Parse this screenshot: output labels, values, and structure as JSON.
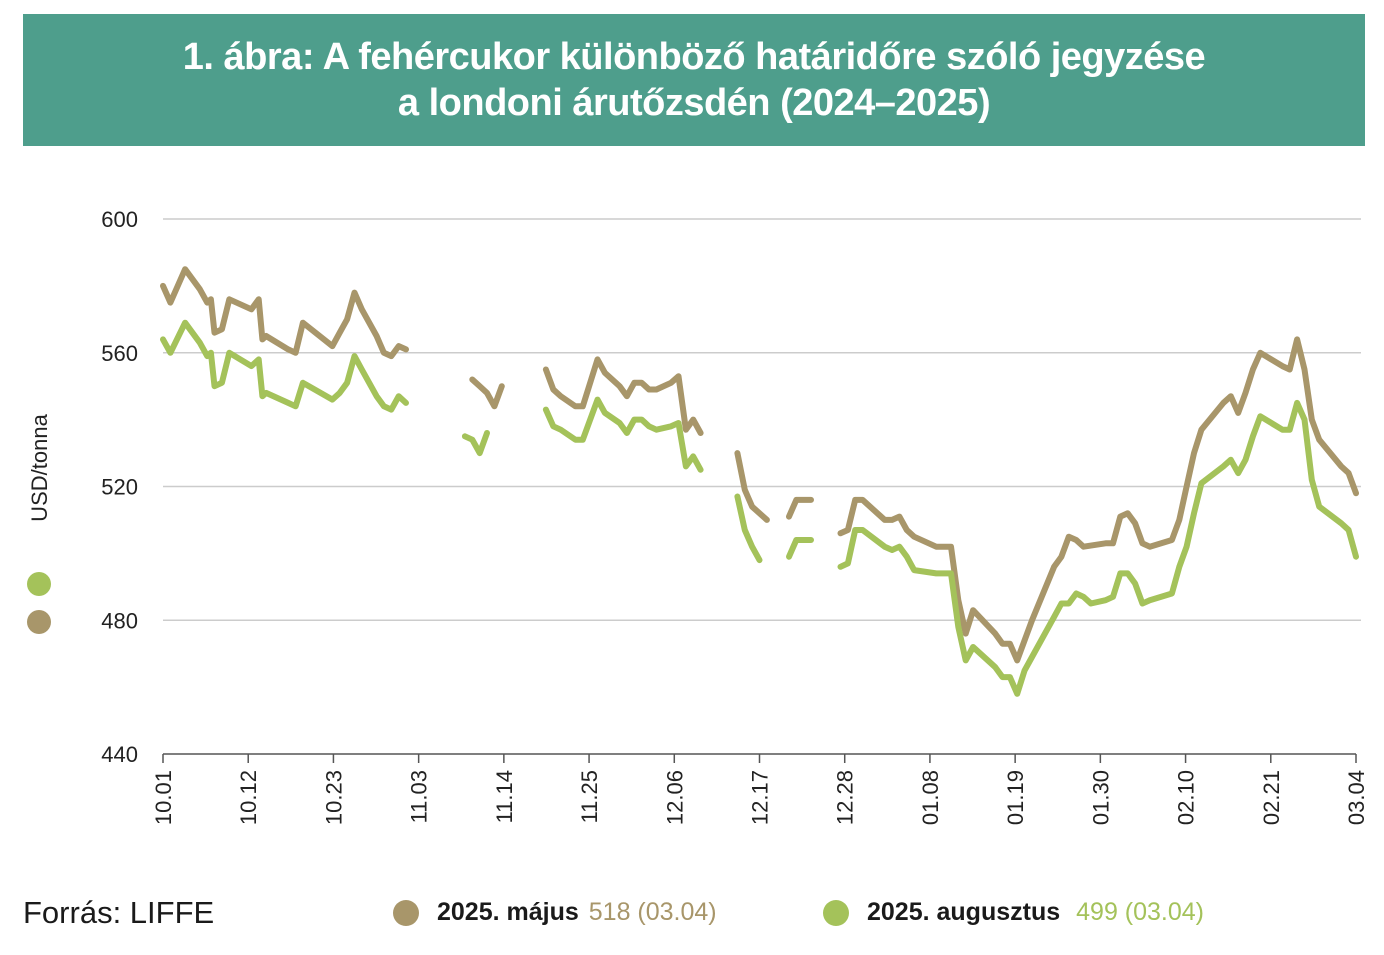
{
  "title": {
    "line1": "1. ábra: A fehércukor különböző határidőre szóló jegyzése",
    "line2": "a londoni árutőzsdén (2024–2025)"
  },
  "source": "Forrás: LIFFE",
  "colors": {
    "title_bg": "#4e9e8c",
    "may": "#a8966a",
    "aug": "#a4c25a",
    "grid": "#cccccc"
  },
  "legend": [
    {
      "name": "2025. május",
      "value": "518 (03.04)",
      "color": "#a8966a"
    },
    {
      "name": "2025. augusztus",
      "value": "499 (03.04)",
      "color": "#a4c25a"
    }
  ],
  "chart_data": {
    "type": "line",
    "ylabel": "USD/tonna",
    "ylim": [
      440,
      600
    ],
    "yticks": [
      "440",
      "480",
      "520",
      "560",
      "600"
    ],
    "xticks": [
      "10.01",
      "10.12",
      "10.23",
      "11.03",
      "11.14",
      "11.25",
      "12.06",
      "12.17",
      "12.28",
      "01.08",
      "01.19",
      "01.30",
      "02.10",
      "02.21",
      "03.04"
    ],
    "grid": "horizontal",
    "legend_position": "bottom",
    "series": [
      {
        "name": "2025. május",
        "segments": [
          [
            [
              0,
              580
            ],
            [
              1,
              575
            ],
            [
              3,
              585
            ],
            [
              5,
              579
            ],
            [
              6,
              575
            ],
            [
              6.5,
              576
            ],
            [
              7,
              566
            ],
            [
              8,
              567
            ],
            [
              9,
              576
            ],
            [
              12,
              573
            ],
            [
              13,
              576
            ],
            [
              13.5,
              564
            ],
            [
              14,
              565
            ],
            [
              17,
              561
            ],
            [
              18,
              560
            ],
            [
              19,
              569
            ],
            [
              23,
              562
            ],
            [
              24,
              566
            ],
            [
              25,
              570
            ],
            [
              26,
              578
            ],
            [
              27,
              573
            ],
            [
              29,
              565
            ],
            [
              30,
              560
            ],
            [
              31,
              559
            ],
            [
              32,
              562
            ],
            [
              33,
              561
            ]
          ],
          [
            [
              42,
              552
            ],
            [
              43,
              550
            ],
            [
              44,
              548
            ],
            [
              45,
              544
            ],
            [
              46,
              550
            ]
          ],
          [
            [
              52,
              555
            ],
            [
              53,
              549
            ],
            [
              54,
              547
            ],
            [
              56,
              544
            ],
            [
              57,
              544
            ],
            [
              59,
              558
            ],
            [
              60,
              554
            ],
            [
              62,
              550
            ],
            [
              63,
              547
            ],
            [
              64,
              551
            ],
            [
              65,
              551
            ],
            [
              66,
              549
            ],
            [
              67,
              549
            ],
            [
              69,
              551
            ],
            [
              70,
              553
            ],
            [
              71,
              537
            ],
            [
              72,
              540
            ],
            [
              73,
              536
            ]
          ],
          [
            [
              78,
              530
            ],
            [
              79,
              519
            ],
            [
              80,
              514
            ],
            [
              82,
              510
            ]
          ],
          [
            [
              85,
              511
            ],
            [
              86,
              516
            ],
            [
              88,
              516
            ]
          ],
          [
            [
              92,
              506
            ],
            [
              93,
              507
            ],
            [
              94,
              516
            ],
            [
              95,
              516
            ],
            [
              98,
              510
            ],
            [
              99,
              510
            ],
            [
              100,
              511
            ],
            [
              101,
              507
            ],
            [
              102,
              505
            ],
            [
              105,
              502
            ],
            [
              106,
              502
            ],
            [
              107,
              502
            ],
            [
              108,
              486
            ],
            [
              109,
              476
            ],
            [
              110,
              483
            ],
            [
              113,
              476
            ],
            [
              114,
              473
            ],
            [
              115,
              473
            ],
            [
              116,
              468
            ],
            [
              117,
              474
            ],
            [
              118,
              480
            ],
            [
              121,
              496
            ],
            [
              122,
              499
            ],
            [
              123,
              505
            ],
            [
              124,
              504
            ],
            [
              125,
              502
            ],
            [
              128,
              503
            ],
            [
              129,
              503
            ],
            [
              130,
              511
            ],
            [
              131,
              512
            ],
            [
              132,
              509
            ],
            [
              133,
              503
            ],
            [
              134,
              502
            ],
            [
              137,
              504
            ],
            [
              138,
              510
            ],
            [
              139,
              520
            ],
            [
              140,
              530
            ],
            [
              141,
              537
            ],
            [
              144,
              545
            ],
            [
              145,
              547
            ],
            [
              146,
              542
            ],
            [
              147,
              548
            ],
            [
              148,
              555
            ],
            [
              149,
              560
            ],
            [
              152,
              556
            ],
            [
              153,
              555
            ],
            [
              154,
              564
            ],
            [
              155,
              555
            ],
            [
              156,
              540
            ],
            [
              157,
              534
            ],
            [
              160,
              526
            ],
            [
              161,
              524
            ],
            [
              162,
              518
            ]
          ]
        ]
      },
      {
        "name": "2025. augusztus",
        "segments": [
          [
            [
              0,
              564
            ],
            [
              1,
              560
            ],
            [
              3,
              569
            ],
            [
              5,
              563
            ],
            [
              6,
              559
            ],
            [
              6.5,
              560
            ],
            [
              7,
              550
            ],
            [
              8,
              551
            ],
            [
              9,
              560
            ],
            [
              12,
              556
            ],
            [
              13,
              558
            ],
            [
              13.5,
              547
            ],
            [
              14,
              548
            ],
            [
              17,
              545
            ],
            [
              18,
              544
            ],
            [
              19,
              551
            ],
            [
              23,
              546
            ],
            [
              24,
              548
            ],
            [
              25,
              551
            ],
            [
              26,
              559
            ],
            [
              27,
              555
            ],
            [
              29,
              547
            ],
            [
              30,
              544
            ],
            [
              31,
              543
            ],
            [
              32,
              547
            ],
            [
              33,
              545
            ]
          ],
          [
            [
              41,
              535
            ],
            [
              42,
              534
            ],
            [
              43,
              530
            ],
            [
              44,
              536
            ]
          ],
          [
            [
              52,
              543
            ],
            [
              53,
              538
            ],
            [
              54,
              537
            ],
            [
              56,
              534
            ],
            [
              57,
              534
            ],
            [
              59,
              546
            ],
            [
              60,
              542
            ],
            [
              62,
              539
            ],
            [
              63,
              536
            ],
            [
              64,
              540
            ],
            [
              65,
              540
            ],
            [
              66,
              538
            ],
            [
              67,
              537
            ],
            [
              69,
              538
            ],
            [
              70,
              539
            ],
            [
              71,
              526
            ],
            [
              72,
              529
            ],
            [
              73,
              525
            ]
          ],
          [
            [
              78,
              517
            ],
            [
              79,
              507
            ],
            [
              80,
              502
            ],
            [
              81,
              498
            ]
          ],
          [
            [
              85,
              499
            ],
            [
              86,
              504
            ],
            [
              88,
              504
            ]
          ],
          [
            [
              92,
              496
            ],
            [
              93,
              497
            ],
            [
              94,
              507
            ],
            [
              95,
              507
            ],
            [
              98,
              502
            ],
            [
              99,
              501
            ],
            [
              100,
              502
            ],
            [
              101,
              499
            ],
            [
              102,
              495
            ],
            [
              105,
              494
            ],
            [
              106,
              494
            ],
            [
              107,
              494
            ],
            [
              108,
              478
            ],
            [
              109,
              468
            ],
            [
              110,
              472
            ],
            [
              113,
              466
            ],
            [
              114,
              463
            ],
            [
              115,
              463
            ],
            [
              116,
              458
            ],
            [
              117,
              465
            ],
            [
              118,
              469
            ],
            [
              121,
              481
            ],
            [
              122,
              485
            ],
            [
              123,
              485
            ],
            [
              124,
              488
            ],
            [
              125,
              487
            ],
            [
              126,
              485
            ],
            [
              128,
              486
            ],
            [
              129,
              487
            ],
            [
              130,
              494
            ],
            [
              131,
              494
            ],
            [
              132,
              491
            ],
            [
              133,
              485
            ],
            [
              134,
              486
            ],
            [
              137,
              488
            ],
            [
              138,
              496
            ],
            [
              139,
              502
            ],
            [
              140,
              512
            ],
            [
              141,
              521
            ],
            [
              144,
              526
            ],
            [
              145,
              528
            ],
            [
              146,
              524
            ],
            [
              147,
              528
            ],
            [
              148,
              535
            ],
            [
              149,
              541
            ],
            [
              152,
              537
            ],
            [
              153,
              537
            ],
            [
              154,
              545
            ],
            [
              155,
              540
            ],
            [
              156,
              522
            ],
            [
              157,
              514
            ],
            [
              160,
              509
            ],
            [
              161,
              507
            ],
            [
              162,
              499
            ]
          ]
        ]
      }
    ]
  }
}
